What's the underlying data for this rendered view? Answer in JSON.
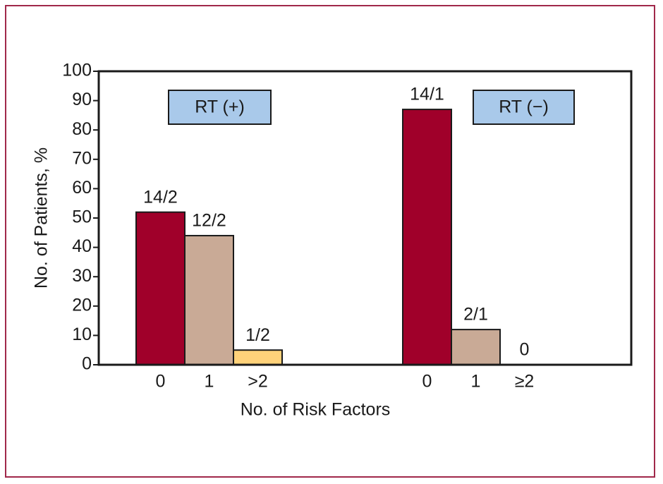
{
  "chart_data": {
    "type": "bar",
    "ylabel": "No. of Patients, %",
    "xlabel": "No. of Risk Factors",
    "ylim": [
      0,
      100
    ],
    "yticks": [
      0,
      10,
      20,
      30,
      40,
      50,
      60,
      70,
      80,
      90,
      100
    ],
    "groups": [
      {
        "label": "RT (+)",
        "categories": [
          "0",
          "1",
          ">2"
        ],
        "values": [
          52,
          44,
          5
        ],
        "annotations": [
          "14/2",
          "12/2",
          "1/2"
        ],
        "colors": [
          "#a0002a",
          "#c9aa96",
          "#ffd27a"
        ]
      },
      {
        "label": "RT (−)",
        "categories": [
          "0",
          "1",
          "≥2"
        ],
        "values": [
          87,
          12,
          0
        ],
        "annotations": [
          "14/1",
          "2/1",
          "0"
        ],
        "colors": [
          "#a0002a",
          "#c9aa96",
          "#ffd27a"
        ]
      }
    ]
  }
}
